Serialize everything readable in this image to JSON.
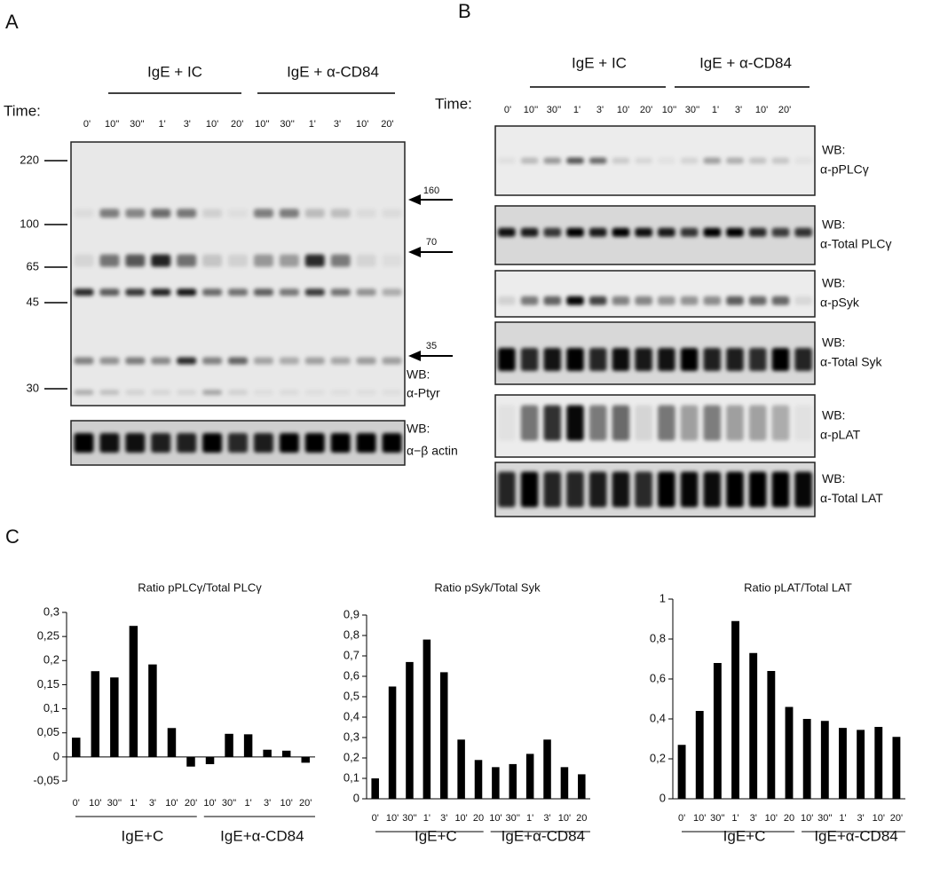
{
  "panels": {
    "a": {
      "label": "A",
      "groups": [
        "IgE + IC",
        "IgE + α-CD84"
      ],
      "time_label": "Time:",
      "lanes": [
        "0'",
        "10''",
        "30''",
        "1'",
        "3'",
        "10'",
        "20'",
        "10''",
        "30''",
        "1'",
        "3'",
        "10'",
        "20'"
      ],
      "markers": [
        "220",
        "100",
        "65",
        "45",
        "30"
      ],
      "arrows": [
        "160",
        "70",
        "35"
      ],
      "blots": [
        {
          "wb": "WB:",
          "antibody": "α-Ptyr"
        },
        {
          "wb": "WB:",
          "antibody": "α−β actin"
        }
      ]
    },
    "b": {
      "label": "B",
      "groups": [
        "IgE + IC",
        "IgE + α-CD84"
      ],
      "time_label": "Time:",
      "lanes": [
        "0'",
        "10''",
        "30''",
        "1'",
        "3'",
        "10'",
        "20'",
        "10''",
        "30''",
        "1'",
        "3'",
        "10'",
        "20'"
      ],
      "blots": [
        {
          "wb": "WB:",
          "antibody": "α-pPLCγ"
        },
        {
          "wb": "WB:",
          "antibody": "α-Total PLCγ"
        },
        {
          "wb": "WB:",
          "antibody": "α-pSyk"
        },
        {
          "wb": "WB:",
          "antibody": "α-Total Syk"
        },
        {
          "wb": "WB:",
          "antibody": "α-pLAT"
        },
        {
          "wb": "WB:",
          "antibody": "α-Total LAT"
        }
      ]
    },
    "c": {
      "label": "C"
    }
  },
  "chart_data": [
    {
      "type": "bar",
      "title": "Ratio pPLCγ/Total PLCγ",
      "color": "#000000",
      "categories": [
        "0'",
        "10'",
        "30''",
        "1'",
        "3'",
        "10'",
        "20'",
        "10'",
        "30''",
        "1'",
        "3'",
        "10'",
        "20'"
      ],
      "values": [
        0.04,
        0.178,
        0.165,
        0.272,
        0.192,
        0.06,
        -0.02,
        -0.015,
        0.048,
        0.047,
        0.015,
        0.013,
        -0.012
      ],
      "groups": [
        "IgE+C",
        "IgE+α-CD84"
      ],
      "ylim": [
        -0.05,
        0.3
      ],
      "yticks": [
        {
          "value": -0.05,
          "label": "-0,05"
        },
        0,
        {
          "value": 0.05,
          "label": "0,05"
        },
        {
          "value": 0.1,
          "label": "0,1"
        },
        {
          "value": 0.15,
          "label": "0,15"
        },
        {
          "value": 0.2,
          "label": "0,2"
        },
        {
          "value": 0.25,
          "label": "0,25"
        },
        {
          "value": 0.3,
          "label": "0,3"
        }
      ]
    },
    {
      "type": "bar",
      "title": "Ratio pSyk/Total Syk",
      "color": "#000000",
      "categories": [
        "0'",
        "10'",
        "30''",
        "1'",
        "3'",
        "10'",
        "20",
        "10'",
        "30''",
        "1'",
        "3'",
        "10'",
        "20"
      ],
      "values": [
        0.1,
        0.55,
        0.67,
        0.78,
        0.62,
        0.29,
        0.19,
        0.155,
        0.17,
        0.22,
        0.29,
        0.155,
        0.12
      ],
      "groups": [
        "IgE+C",
        "IgE+α-CD84"
      ],
      "ylim": [
        0,
        0.9
      ],
      "yticks": [
        0,
        {
          "value": 0.1,
          "label": "0,1"
        },
        {
          "value": 0.2,
          "label": "0,2"
        },
        {
          "value": 0.3,
          "label": "0,3"
        },
        {
          "value": 0.4,
          "label": "0,4"
        },
        {
          "value": 0.5,
          "label": "0,5"
        },
        {
          "value": 0.6,
          "label": "0,6"
        },
        {
          "value": 0.7,
          "label": "0,7"
        },
        {
          "value": 0.8,
          "label": "0,8"
        },
        {
          "value": 0.9,
          "label": "0,9"
        }
      ]
    },
    {
      "type": "bar",
      "title": "Ratio pLAT/Total LAT",
      "color": "#000000",
      "categories": [
        "0'",
        "10'",
        "30''",
        "1'",
        "3'",
        "10'",
        "20",
        "10'",
        "30''",
        "1'",
        "3'",
        "10'",
        "20'"
      ],
      "values": [
        0.27,
        0.44,
        0.68,
        0.89,
        0.73,
        0.64,
        0.46,
        0.4,
        0.39,
        0.355,
        0.345,
        0.36,
        0.31
      ],
      "groups": [
        "IgE+C",
        "IgE+α-CD84"
      ],
      "ylim": [
        0,
        1
      ],
      "yticks": [
        0,
        {
          "value": 0.2,
          "label": "0,2"
        },
        {
          "value": 0.4,
          "label": "0,4"
        },
        {
          "value": 0.6,
          "label": "0,6"
        },
        {
          "value": 0.8,
          "label": "0,8"
        },
        1
      ]
    }
  ]
}
